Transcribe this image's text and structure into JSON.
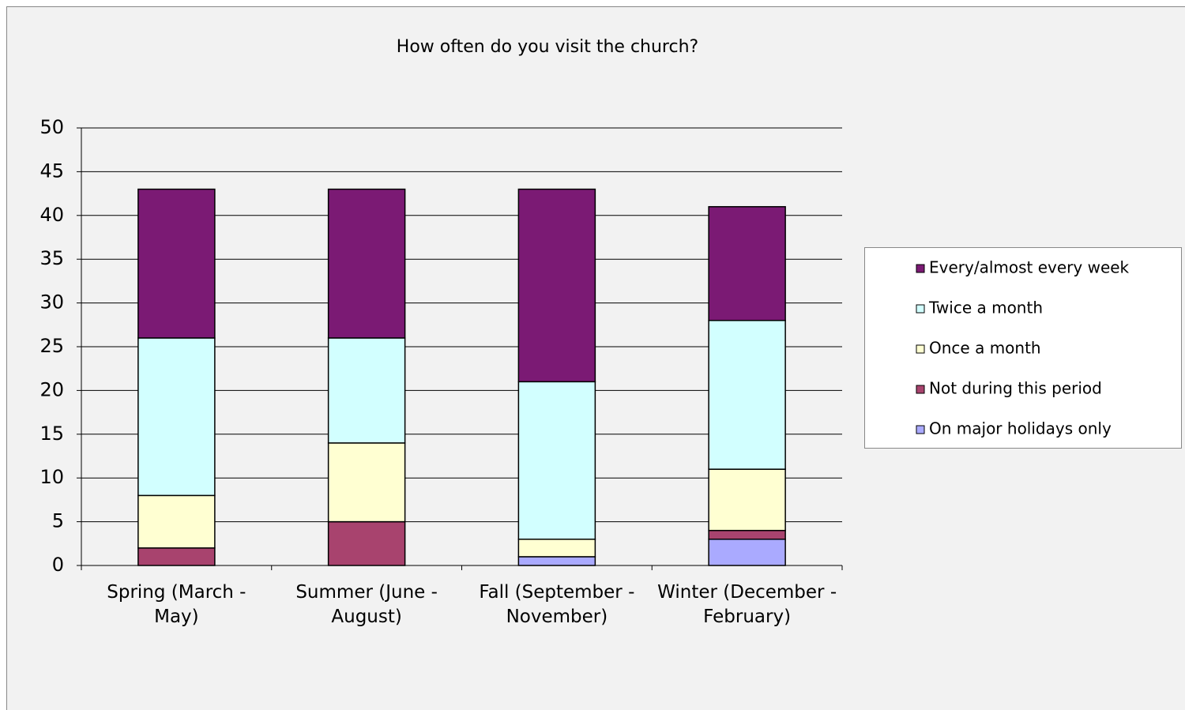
{
  "chart_data": {
    "type": "stacked_bar",
    "title": "How often do you visit the church?",
    "categories": [
      "Spring (March - May)",
      "Summer (June - August)",
      "Fall (September - November)",
      "Winter (December - February)"
    ],
    "series": [
      {
        "name": "On major holidays only",
        "color": "#aaaaff",
        "values": [
          0,
          0,
          1,
          3
        ]
      },
      {
        "name": "Not during this period",
        "color": "#a8436e",
        "values": [
          2,
          5,
          0,
          1
        ]
      },
      {
        "name": "Once a month",
        "color": "#ffffd2",
        "values": [
          6,
          9,
          2,
          7
        ]
      },
      {
        "name": "Twice a month",
        "color": "#d2ffff",
        "values": [
          18,
          12,
          18,
          17
        ]
      },
      {
        "name": "Every/almost every week",
        "color": "#7b1a74",
        "values": [
          17,
          17,
          22,
          13
        ]
      }
    ],
    "ylim": [
      0,
      50
    ],
    "yticks": [
      0,
      5,
      10,
      15,
      20,
      25,
      30,
      35,
      40,
      45,
      50
    ],
    "grid": true,
    "legend": "right"
  }
}
